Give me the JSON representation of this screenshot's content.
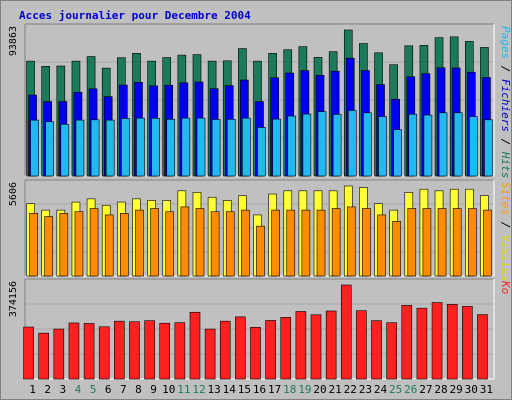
{
  "chart_data": {
    "type": "bar",
    "title": "Acces journalier pour Decembre 2004",
    "categories": [
      "1",
      "2",
      "3",
      "4",
      "5",
      "6",
      "7",
      "8",
      "9",
      "10",
      "11",
      "12",
      "13",
      "14",
      "15",
      "16",
      "17",
      "18",
      "19",
      "20",
      "21",
      "22",
      "23",
      "24",
      "25",
      "26",
      "27",
      "28",
      "29",
      "30",
      "31"
    ],
    "weekend_days": [
      "4",
      "5",
      "11",
      "12",
      "18",
      "19",
      "25",
      "26"
    ],
    "colors": {
      "title": "#0000cc",
      "weekday": "#000000",
      "weekend": "#1f7a55",
      "pages": "#22b8f0",
      "fichiers": "#0000ee",
      "hits": "#1a7a5a",
      "sites": "#ff9900",
      "visites": "#ffff33",
      "ko": "#ff2020"
    },
    "panels": [
      {
        "id": "hits",
        "scale_label": "93863",
        "legend": [
          {
            "text": "Pages",
            "color": "#22b8f0"
          },
          {
            "text": "Fichiers",
            "color": "#0000cc"
          },
          {
            "text": "Hits",
            "color": "#1a7a5a"
          }
        ],
        "series": [
          {
            "name": "Hits",
            "color": "#1a7a5a",
            "values": [
              70500,
              67300,
              67500,
              70500,
              73300,
              66200,
              72600,
              75300,
              70500,
              72700,
              74200,
              74500,
              70500,
              70700,
              78200,
              70500,
              75300,
              77500,
              79400,
              72800,
              76300,
              89600,
              81300,
              75600,
              68300,
              79900,
              80200,
              84900,
              85400,
              82600,
              78900
            ]
          },
          {
            "name": "Fichiers",
            "color": "#0000ee",
            "values": [
              49700,
              45700,
              45700,
              51400,
              53500,
              48700,
              55800,
              57500,
              55300,
              55700,
              57200,
              57700,
              53600,
              55500,
              58900,
              45700,
              60300,
              63200,
              64700,
              61800,
              64300,
              72300,
              64700,
              56100,
              47100,
              60900,
              62800,
              66400,
              66300,
              63700,
              60500
            ]
          },
          {
            "name": "Pages",
            "color": "#22b8f0",
            "values": [
              34300,
              33300,
              31700,
              34300,
              34500,
              34300,
              35300,
              35500,
              35400,
              34800,
              35500,
              35500,
              34700,
              34800,
              35500,
              29800,
              34900,
              36800,
              38000,
              39500,
              37800,
              40200,
              38800,
              36500,
              28400,
              37900,
              37400,
              38800,
              38800,
              36500,
              34500
            ]
          }
        ]
      },
      {
        "id": "visites",
        "scale_label": "5606",
        "legend": [
          {
            "text": "Sites",
            "color": "#ff9900"
          },
          {
            "text": "Visites",
            "color": "#dddd00"
          }
        ],
        "series": [
          {
            "name": "Visites",
            "color": "#ffff33",
            "values": [
              4500,
              4100,
              4100,
              4600,
              4800,
              4400,
              4600,
              4800,
              4700,
              4700,
              5300,
              5200,
              4900,
              4700,
              5000,
              3800,
              5100,
              5300,
              5300,
              5300,
              5300,
              5600,
              5500,
              4500,
              4100,
              5200,
              5400,
              5300,
              5400,
              5400,
              5000
            ]
          },
          {
            "name": "Sites",
            "color": "#ff8c00",
            "values": [
              3900,
              3700,
              3900,
              4000,
              4200,
              3800,
              3900,
              4100,
              4200,
              4000,
              4300,
              4200,
              4000,
              4000,
              4100,
              3100,
              4100,
              4100,
              4100,
              4100,
              4200,
              4300,
              4200,
              3800,
              3400,
              4200,
              4200,
              4200,
              4200,
              4200,
              4100
            ]
          }
        ]
      },
      {
        "id": "ko",
        "scale_label": "374156",
        "legend": [
          {
            "text": "Ko",
            "color": "#ff2020"
          }
        ],
        "series": [
          {
            "name": "Ko",
            "color": "#ff2020",
            "values": [
              204000,
              180000,
              196000,
              220000,
              218000,
              205000,
              227000,
              225000,
              229000,
              219000,
              221000,
              262000,
              196000,
              227000,
              244000,
              203000,
              230000,
              242000,
              265000,
              252000,
              267000,
              369000,
              268000,
              229000,
              221000,
              289000,
              278000,
              300000,
              293000,
              285000,
              253000
            ]
          }
        ]
      }
    ]
  }
}
